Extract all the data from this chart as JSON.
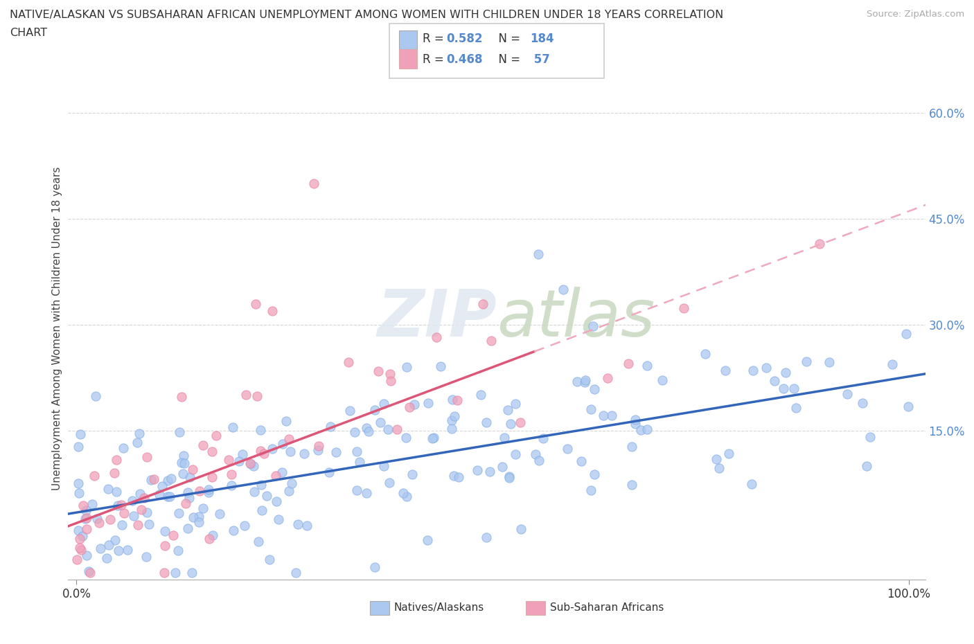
{
  "title_line1": "NATIVE/ALASKAN VS SUBSAHARAN AFRICAN UNEMPLOYMENT AMONG WOMEN WITH CHILDREN UNDER 18 YEARS CORRELATION",
  "title_line2": "CHART",
  "source": "Source: ZipAtlas.com",
  "ylabel": "Unemployment Among Women with Children Under 18 years",
  "ytick_values": [
    0.0,
    0.15,
    0.3,
    0.45,
    0.6
  ],
  "ytick_labels": [
    "",
    "15.0%",
    "30.0%",
    "45.0%",
    "60.0%"
  ],
  "blue_color": "#aac8f0",
  "pink_color": "#f0a0b8",
  "blue_line_color": "#3366bb",
  "pink_line_color": "#dd5577",
  "pink_dash_color": "#f0a8bc",
  "tick_color": "#5588cc",
  "legend_R1": "0.582",
  "legend_N1": "184",
  "legend_R2": "0.468",
  "legend_N2": "57",
  "watermark_color": "#dddddd",
  "grid_color": "#cccccc",
  "xlim": [
    -0.01,
    1.02
  ],
  "ylim": [
    -0.06,
    0.65
  ]
}
